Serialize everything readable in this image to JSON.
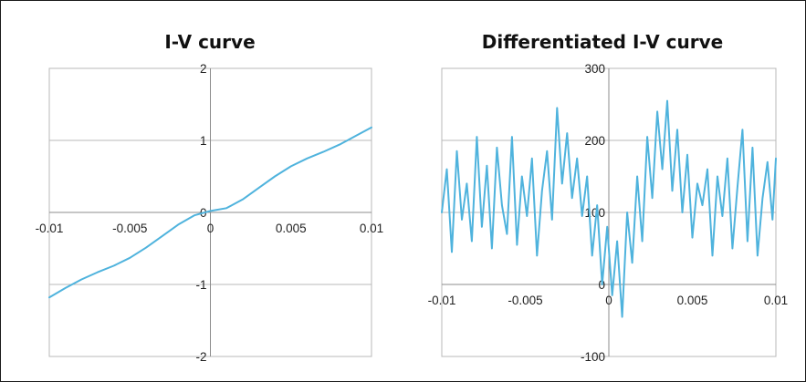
{
  "chart_data": [
    {
      "type": "line",
      "title": "I-V curve",
      "xlim": [
        -0.01,
        0.01
      ],
      "ylim": [
        -2,
        2
      ],
      "x_ticks": [
        -0.01,
        -0.005,
        0,
        0.005,
        0.01
      ],
      "x_tick_labels": [
        "-0.01",
        "-0.005",
        "0",
        "0.005",
        "0.01"
      ],
      "y_ticks": [
        -2,
        -1,
        0,
        1,
        2
      ],
      "y_tick_labels": [
        "-2",
        "-1",
        "0",
        "1",
        "2"
      ],
      "grid": true,
      "color": "#4fb3dd",
      "series": [
        {
          "x": [
            -0.01,
            -0.009,
            -0.008,
            -0.007,
            -0.006,
            -0.005,
            -0.004,
            -0.003,
            -0.002,
            -0.001,
            0,
            0.001,
            0.002,
            0.003,
            0.004,
            0.005,
            0.006,
            0.007,
            0.008,
            0.009,
            0.01
          ],
          "y": [
            -1.18,
            -1.05,
            -0.93,
            -0.83,
            -0.74,
            -0.63,
            -0.49,
            -0.33,
            -0.17,
            -0.04,
            0.02,
            0.06,
            0.18,
            0.34,
            0.5,
            0.64,
            0.75,
            0.84,
            0.94,
            1.06,
            1.18
          ]
        }
      ]
    },
    {
      "type": "line",
      "title": "Differentiated I-V curve",
      "xlim": [
        -0.01,
        0.01
      ],
      "ylim": [
        -100,
        300
      ],
      "x_ticks": [
        -0.01,
        -0.005,
        0,
        0.005,
        0.01
      ],
      "x_tick_labels": [
        "-0.01",
        "-0.005",
        "0",
        "0.005",
        "0.01"
      ],
      "y_ticks": [
        -100,
        0,
        100,
        200,
        300
      ],
      "y_tick_labels": [
        "-100",
        "0",
        "100",
        "200",
        "300"
      ],
      "grid": true,
      "color": "#4fb3dd",
      "series": [
        {
          "x": [
            -0.01,
            -0.0097,
            -0.0094,
            -0.0091,
            -0.0088,
            -0.0085,
            -0.0082,
            -0.0079,
            -0.0076,
            -0.0073,
            -0.007,
            -0.0067,
            -0.0064,
            -0.0061,
            -0.0058,
            -0.0055,
            -0.0052,
            -0.0049,
            -0.0046,
            -0.0043,
            -0.004,
            -0.0037,
            -0.0034,
            -0.0031,
            -0.0028,
            -0.0025,
            -0.0022,
            -0.0019,
            -0.0016,
            -0.0013,
            -0.001,
            -0.0007,
            -0.0004,
            -0.0001,
            0.0002,
            0.0005,
            0.0008,
            0.0011,
            0.0014,
            0.0017,
            0.002,
            0.0023,
            0.0026,
            0.0029,
            0.0032,
            0.0035,
            0.0038,
            0.0041,
            0.0044,
            0.0047,
            0.005,
            0.0053,
            0.0056,
            0.0059,
            0.0062,
            0.0065,
            0.0068,
            0.0071,
            0.0074,
            0.0077,
            0.008,
            0.0083,
            0.0086,
            0.0089,
            0.0092,
            0.0095,
            0.0098,
            0.01
          ],
          "y": [
            100,
            160,
            45,
            185,
            90,
            140,
            60,
            205,
            80,
            165,
            50,
            190,
            110,
            70,
            205,
            55,
            150,
            95,
            175,
            40,
            130,
            185,
            90,
            245,
            140,
            210,
            120,
            175,
            95,
            150,
            40,
            110,
            0,
            80,
            -15,
            60,
            -45,
            100,
            30,
            150,
            60,
            205,
            120,
            240,
            160,
            255,
            130,
            215,
            100,
            180,
            65,
            140,
            110,
            160,
            40,
            150,
            95,
            175,
            50,
            135,
            215,
            60,
            190,
            40,
            120,
            170,
            90,
            175
          ]
        }
      ]
    }
  ]
}
